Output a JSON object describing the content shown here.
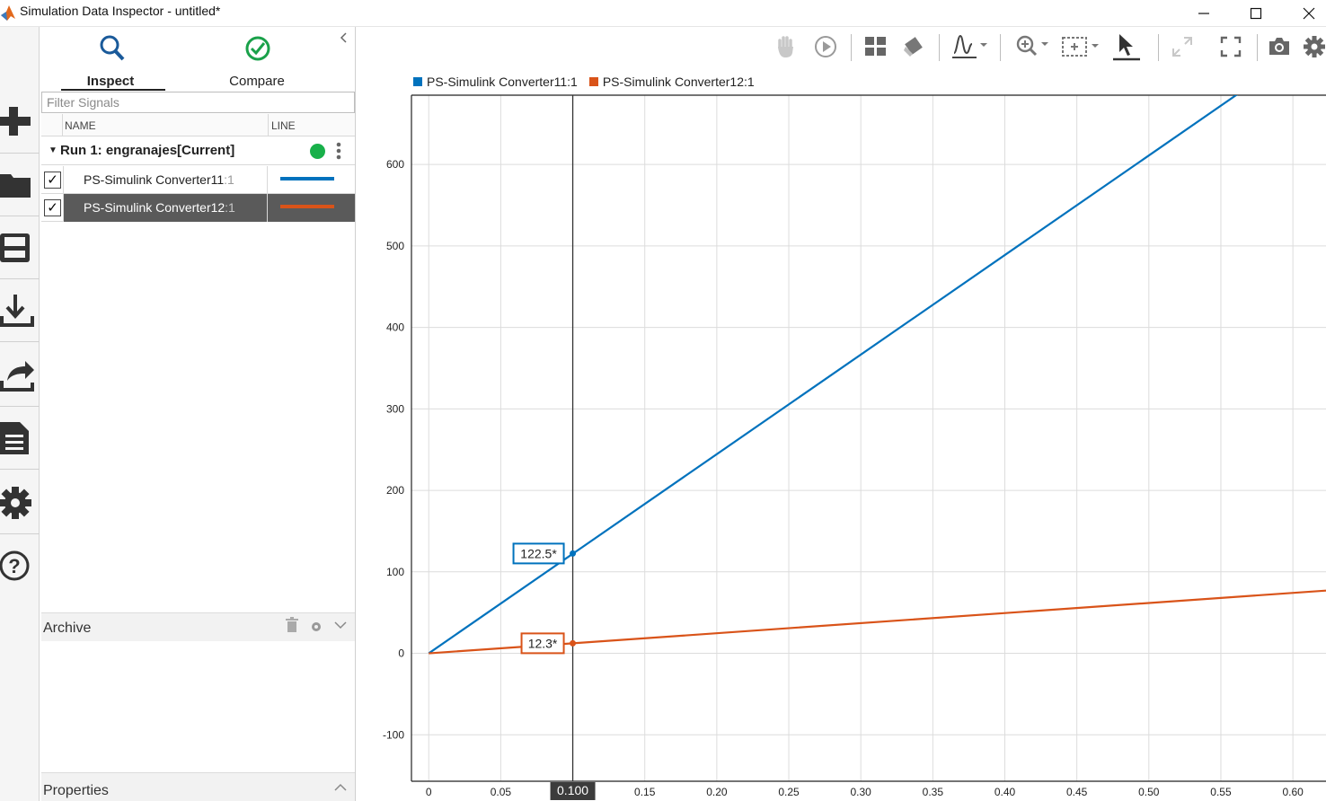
{
  "window": {
    "title": "Simulation Data Inspector - untitled*",
    "controls": {
      "minimize": "minimize-icon",
      "maximize": "maximize-icon",
      "close": "close-icon"
    }
  },
  "rail": {
    "items": [
      {
        "name": "new-icon"
      },
      {
        "name": "open-icon"
      },
      {
        "name": "save-icon"
      },
      {
        "name": "import-icon"
      },
      {
        "name": "export-icon"
      },
      {
        "name": "report-icon"
      },
      {
        "name": "settings-icon"
      },
      {
        "name": "help-icon"
      }
    ]
  },
  "panel": {
    "tabs": {
      "inspect": "Inspect",
      "compare": "Compare"
    },
    "filter_placeholder": "Filter Signals",
    "columns": {
      "name": "NAME",
      "line": "LINE"
    },
    "run": {
      "label": "Run 1: engranajes[Current]",
      "status_color": "#18b04a"
    },
    "signals": [
      {
        "name": "PS-Simulink Converter11",
        "port": ":1",
        "checked": true,
        "color": "#0072bd",
        "selected": false
      },
      {
        "name": "PS-Simulink Converter12",
        "port": ":1",
        "checked": true,
        "color": "#d95319",
        "selected": true
      }
    ],
    "archive_label": "Archive",
    "properties_label": "Properties"
  },
  "toolbar": {
    "icons": [
      "pan-icon",
      "replay-icon",
      "layout-icon",
      "clear-icon",
      "signal-style-icon",
      "zoom-icon",
      "fit-icon",
      "cursor-icon",
      "expand-icon",
      "fullscreen-icon",
      "snapshot-icon",
      "settings-icon"
    ]
  },
  "colors": {
    "series1": "#0072bd",
    "series2": "#d95319",
    "grid": "#dcdcdc",
    "axis": "#222222"
  },
  "chart_data": {
    "type": "line",
    "title": "",
    "xlabel": "",
    "ylabel": "",
    "xlim": [
      -0.012,
      0.623
    ],
    "ylim": [
      -157,
      685
    ],
    "xticks": [
      0,
      0.05,
      0.1,
      0.15,
      0.2,
      0.25,
      0.3,
      0.35,
      0.4,
      0.45,
      0.5,
      0.55,
      0.6
    ],
    "xtick_labels": [
      "0",
      "0.05",
      "0.100",
      "0.15",
      "0.20",
      "0.25",
      "0.30",
      "0.35",
      "0.40",
      "0.45",
      "0.50",
      "0.55",
      "0.60"
    ],
    "yticks": [
      -100,
      0,
      100,
      200,
      300,
      400,
      500,
      600
    ],
    "ytick_labels": [
      "-100",
      "0",
      "100",
      "200",
      "300",
      "400",
      "500",
      "600"
    ],
    "grid": true,
    "series": [
      {
        "name": "PS-Simulink Converter11:1",
        "x": [
          0,
          0.563
        ],
        "y": [
          0,
          688
        ]
      },
      {
        "name": "PS-Simulink Converter12:1",
        "x": [
          0,
          0.1,
          0.623
        ],
        "y": [
          0,
          12.3,
          77
        ]
      }
    ],
    "cursor": {
      "x": 0.1,
      "label": "0.100"
    },
    "data_labels": [
      {
        "series": 0,
        "x": 0.1,
        "y": 122.5,
        "text": "122.5*"
      },
      {
        "series": 1,
        "x": 0.1,
        "y": 12.3,
        "text": "12.3*"
      }
    ]
  }
}
